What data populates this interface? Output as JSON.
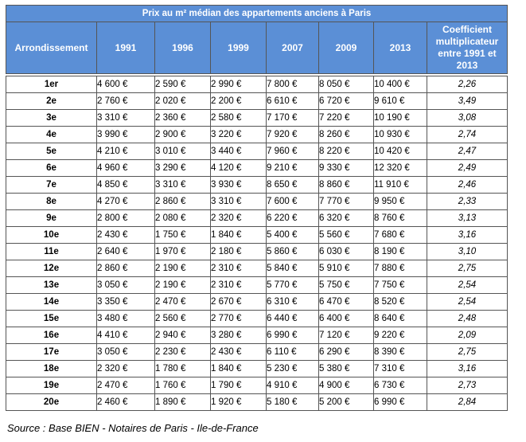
{
  "title": "Prix au m² médian des appartements anciens à Paris",
  "headers": {
    "arrondissement": "Arrondissement",
    "years": [
      "1991",
      "1996",
      "1999",
      "2007",
      "2009",
      "2013"
    ],
    "coef_line1": "Coefficient",
    "coef_line2": "multiplicateur",
    "coef_line3": "entre 1991 et 2013"
  },
  "rows": [
    {
      "arr": "1er",
      "v": [
        "4 600 €",
        "2 590 €",
        "2 990 €",
        "7 800 €",
        "8 050 €",
        "10 400 €"
      ],
      "coef": "2,26"
    },
    {
      "arr": "2e",
      "v": [
        "2 760 €",
        "2 020 €",
        "2 200 €",
        "6 610 €",
        "6 720 €",
        "9 610 €"
      ],
      "coef": "3,49"
    },
    {
      "arr": "3e",
      "v": [
        "3 310 €",
        "2 360 €",
        "2 580 €",
        "7 170 €",
        "7 220 €",
        "10 190 €"
      ],
      "coef": "3,08"
    },
    {
      "arr": "4e",
      "v": [
        "3 990 €",
        "2 900 €",
        "3 220 €",
        "7 920 €",
        "8 260 €",
        "10 930 €"
      ],
      "coef": "2,74"
    },
    {
      "arr": "5e",
      "v": [
        "4 210 €",
        "3 010 €",
        "3 440 €",
        "7 960 €",
        "8 220 €",
        "10 420 €"
      ],
      "coef": "2,47"
    },
    {
      "arr": "6e",
      "v": [
        "4 960 €",
        "3 290 €",
        "4 120 €",
        "9 210 €",
        "9 330 €",
        "12 320 €"
      ],
      "coef": "2,49"
    },
    {
      "arr": "7e",
      "v": [
        "4 850 €",
        "3 310 €",
        "3 930 €",
        "8 650 €",
        "8 860 €",
        "11 910 €"
      ],
      "coef": "2,46"
    },
    {
      "arr": "8e",
      "v": [
        "4 270 €",
        "2 860 €",
        "3 310 €",
        "7 600 €",
        "7 770 €",
        "9 950 €"
      ],
      "coef": "2,33"
    },
    {
      "arr": "9e",
      "v": [
        "2 800 €",
        "2 080 €",
        "2 320 €",
        "6 220 €",
        "6 320 €",
        "8 760 €"
      ],
      "coef": "3,13"
    },
    {
      "arr": "10e",
      "v": [
        "2 430 €",
        "1 750 €",
        "1 840 €",
        "5 400 €",
        "5 560 €",
        "7 680 €"
      ],
      "coef": "3,16"
    },
    {
      "arr": "11e",
      "v": [
        "2 640 €",
        "1 970 €",
        "2 180 €",
        "5 860 €",
        "6 030 €",
        "8 190 €"
      ],
      "coef": "3,10"
    },
    {
      "arr": "12e",
      "v": [
        "2 860 €",
        "2 190 €",
        "2 310 €",
        "5 840 €",
        "5 910 €",
        "7 880 €"
      ],
      "coef": "2,75"
    },
    {
      "arr": "13e",
      "v": [
        "3 050 €",
        "2 190 €",
        "2 310 €",
        "5 770 €",
        "5 750 €",
        "7 750 €"
      ],
      "coef": "2,54"
    },
    {
      "arr": "14e",
      "v": [
        "3 350 €",
        "2 470 €",
        "2 670 €",
        "6 310 €",
        "6 470 €",
        "8 520 €"
      ],
      "coef": "2,54"
    },
    {
      "arr": "15e",
      "v": [
        "3 480 €",
        "2 560 €",
        "2 770 €",
        "6 440 €",
        "6 400 €",
        "8 640 €"
      ],
      "coef": "2,48"
    },
    {
      "arr": "16e",
      "v": [
        "4 410 €",
        "2 940 €",
        "3 280 €",
        "6 990 €",
        "7 120 €",
        "9 220 €"
      ],
      "coef": "2,09"
    },
    {
      "arr": "17e",
      "v": [
        "3 050 €",
        "2 230 €",
        "2 430 €",
        "6 110 €",
        "6 290 €",
        "8 390 €"
      ],
      "coef": "2,75"
    },
    {
      "arr": "18e",
      "v": [
        "2 320 €",
        "1 780 €",
        "1 840 €",
        "5 230 €",
        "5 380 €",
        "7 310 €"
      ],
      "coef": "3,16"
    },
    {
      "arr": "19e",
      "v": [
        "2 470 €",
        "1 760 €",
        "1 790 €",
        "4 910 €",
        "4 900 €",
        "6 730 €"
      ],
      "coef": "2,73"
    },
    {
      "arr": "20e",
      "v": [
        "2 460 €",
        "1 890 €",
        "1 920 €",
        "5 180 €",
        "5 200 €",
        "6 990 €"
      ],
      "coef": "2,84"
    }
  ],
  "source": "Source : Base BIEN - Notaires de Paris - Ile-de-France"
}
